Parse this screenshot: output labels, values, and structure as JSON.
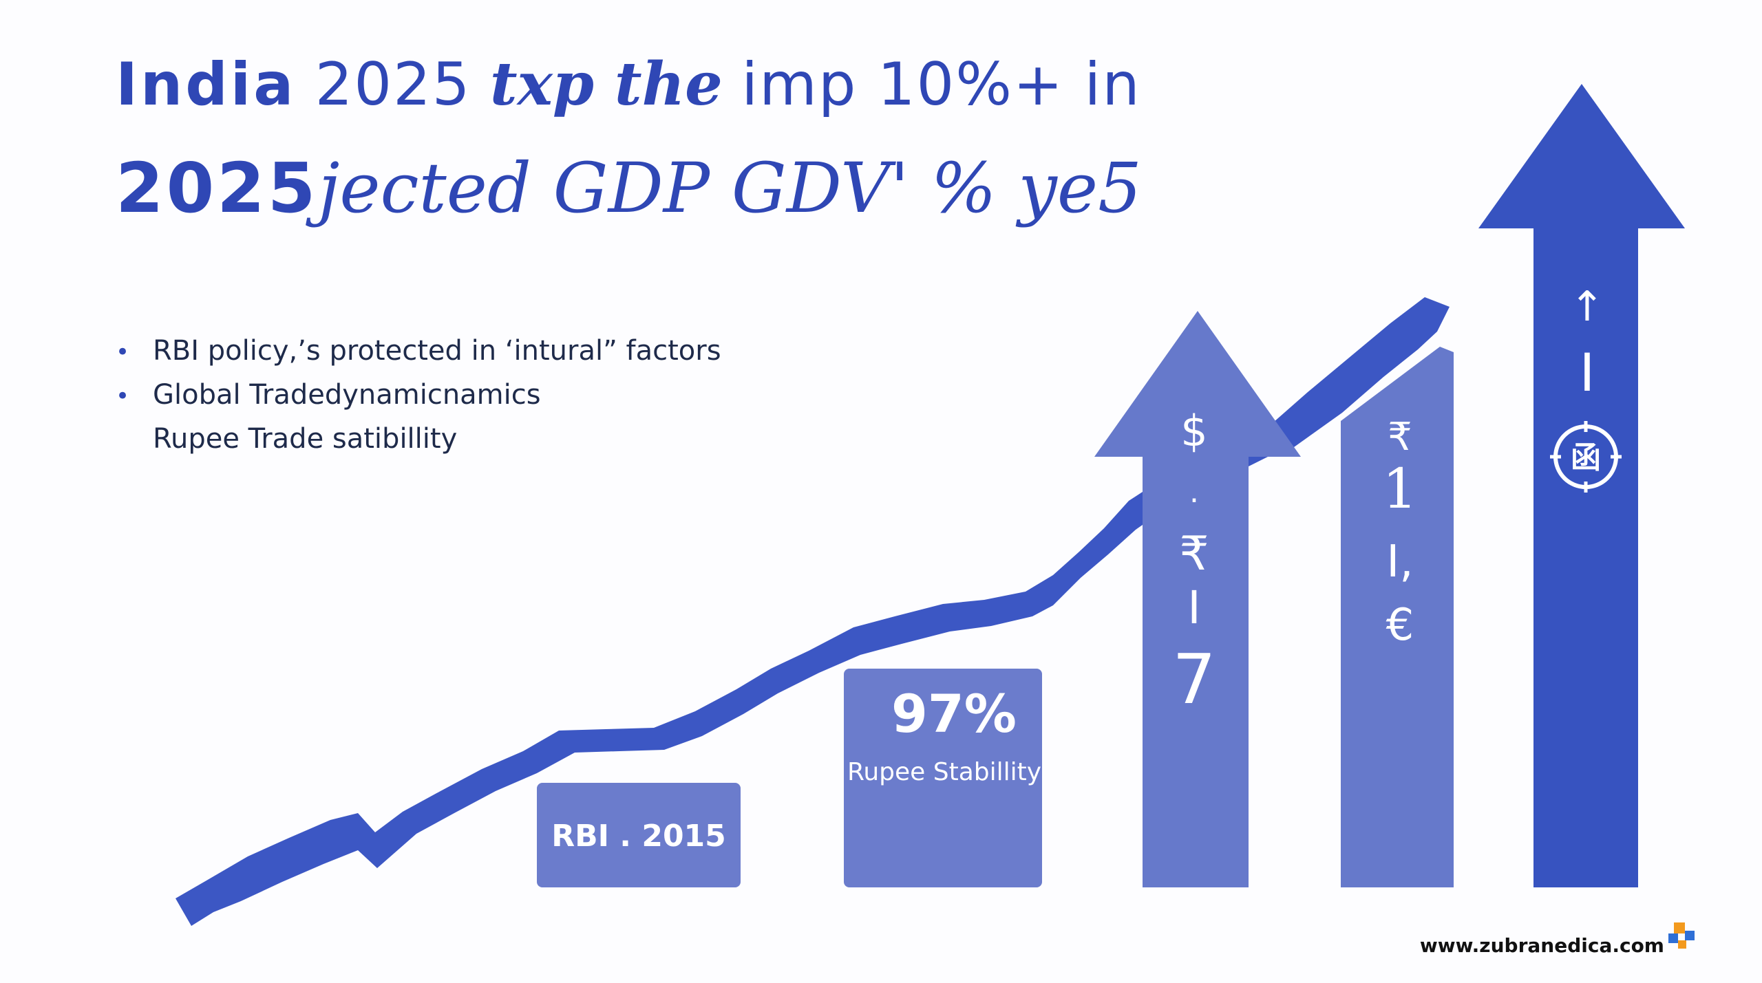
{
  "title": {
    "line1": [
      "India",
      "2025",
      "txp the",
      "imp 10%+ in"
    ],
    "line2": [
      "2025",
      "jected GDP GDV' % ye5"
    ]
  },
  "bullets": {
    "items": [
      "RBI policy,’s protected in ‘intural” factors",
      "Global Tradedynamicnamics"
    ],
    "continuation": "Rupee Trade satibillity"
  },
  "boxes": {
    "rbi": "RBI . 2015",
    "stability_value": "97%",
    "stability_label": "Rupee Stabillity"
  },
  "arrows": {
    "arrow1": [
      "$",
      ".",
      "₹",
      "I",
      "7"
    ],
    "arrow2": [
      "₹",
      "1",
      "I,",
      "€"
    ],
    "arrow3_glyph": "↑",
    "arrow3_bar": "I",
    "arrow3_seal": "函"
  },
  "colors": {
    "title": "#2f47b5",
    "line": "#3c57c4",
    "box": "#6b7ccc",
    "arrow_light": "#6679cb",
    "arrow_dark": "#3753c0"
  },
  "watermark": "www.zubranedica.com"
}
